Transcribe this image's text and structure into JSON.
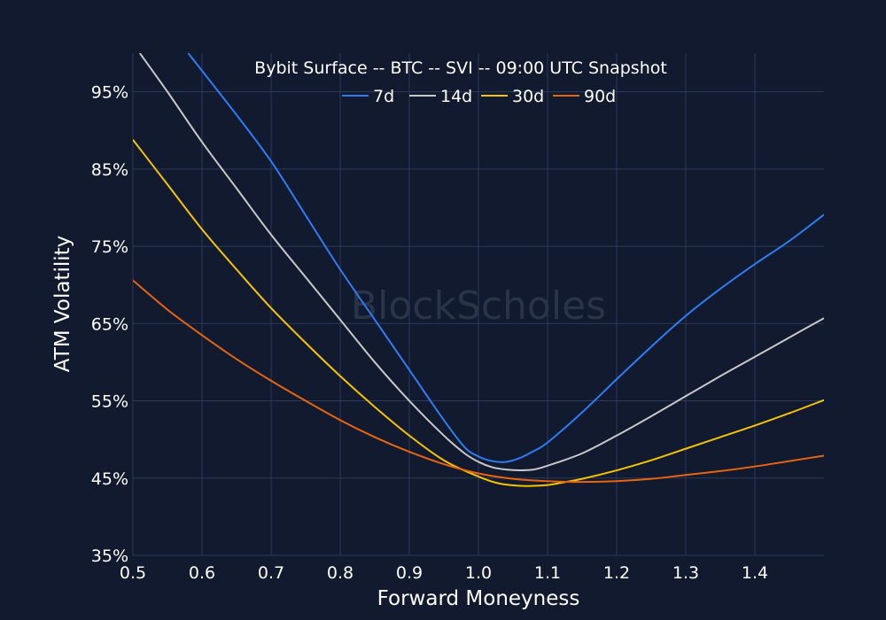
{
  "chart_data": {
    "type": "line",
    "title": "Bybit Surface -- BTC -- SVI -- 09:00 UTC Snapshot",
    "xlabel": "Forward Moneyness",
    "ylabel": "ATM Volatility",
    "watermark": "BlockScholes",
    "xlim": [
      0.5,
      1.5
    ],
    "ylim": [
      0.35,
      1.0
    ],
    "xticks": [
      0.5,
      0.6,
      0.7,
      0.8,
      0.9,
      1.0,
      1.1,
      1.2,
      1.3,
      1.4
    ],
    "xtick_labels": [
      "0.5",
      "0.6",
      "0.7",
      "0.8",
      "0.9",
      "1.0",
      "1.1",
      "1.2",
      "1.3",
      "1.4"
    ],
    "yticks": [
      0.35,
      0.45,
      0.55,
      0.65,
      0.75,
      0.85,
      0.95
    ],
    "ytick_labels": [
      "35%",
      "45%",
      "55%",
      "65%",
      "75%",
      "85%",
      "95%"
    ],
    "grid": true,
    "legend_position": "top-center",
    "series": [
      {
        "name": "7d",
        "color": "#2f7df6",
        "x": [
          0.58,
          0.65,
          0.7,
          0.75,
          0.8,
          0.85,
          0.9,
          0.95,
          0.98,
          1.0,
          1.02,
          1.04,
          1.06,
          1.08,
          1.1,
          1.15,
          1.2,
          1.25,
          1.3,
          1.35,
          1.4,
          1.45,
          1.5
        ],
        "y": [
          1.0,
          0.92,
          0.86,
          0.79,
          0.72,
          0.655,
          0.59,
          0.525,
          0.49,
          0.478,
          0.472,
          0.471,
          0.476,
          0.485,
          0.496,
          0.535,
          0.578,
          0.62,
          0.66,
          0.695,
          0.727,
          0.757,
          0.791
        ]
      },
      {
        "name": "14d",
        "color": "#c8c8c8",
        "x": [
          0.51,
          0.55,
          0.6,
          0.65,
          0.7,
          0.75,
          0.8,
          0.85,
          0.9,
          0.95,
          0.98,
          1.0,
          1.02,
          1.04,
          1.06,
          1.08,
          1.1,
          1.15,
          1.2,
          1.25,
          1.3,
          1.35,
          1.4,
          1.45,
          1.5
        ],
        "y": [
          1.0,
          0.95,
          0.885,
          0.825,
          0.765,
          0.71,
          0.655,
          0.6,
          0.55,
          0.505,
          0.482,
          0.471,
          0.464,
          0.461,
          0.46,
          0.461,
          0.466,
          0.482,
          0.505,
          0.53,
          0.556,
          0.582,
          0.607,
          0.632,
          0.657
        ]
      },
      {
        "name": "30d",
        "color": "#f5c400",
        "x": [
          0.5,
          0.55,
          0.6,
          0.65,
          0.7,
          0.75,
          0.8,
          0.85,
          0.9,
          0.95,
          1.0,
          1.03,
          1.06,
          1.08,
          1.1,
          1.12,
          1.15,
          1.2,
          1.25,
          1.3,
          1.35,
          1.4,
          1.45,
          1.5
        ],
        "y": [
          0.888,
          0.83,
          0.772,
          0.72,
          0.67,
          0.625,
          0.582,
          0.542,
          0.505,
          0.473,
          0.452,
          0.443,
          0.44,
          0.44,
          0.441,
          0.444,
          0.449,
          0.46,
          0.473,
          0.488,
          0.503,
          0.518,
          0.534,
          0.551
        ]
      },
      {
        "name": "90d",
        "color": "#e8650f",
        "x": [
          0.5,
          0.55,
          0.6,
          0.65,
          0.7,
          0.75,
          0.8,
          0.85,
          0.9,
          0.95,
          1.0,
          1.05,
          1.1,
          1.15,
          1.2,
          1.25,
          1.3,
          1.35,
          1.4,
          1.45,
          1.5
        ],
        "y": [
          0.706,
          0.668,
          0.635,
          0.604,
          0.576,
          0.55,
          0.525,
          0.503,
          0.484,
          0.468,
          0.456,
          0.449,
          0.446,
          0.445,
          0.446,
          0.449,
          0.454,
          0.459,
          0.465,
          0.472,
          0.479
        ]
      }
    ]
  }
}
